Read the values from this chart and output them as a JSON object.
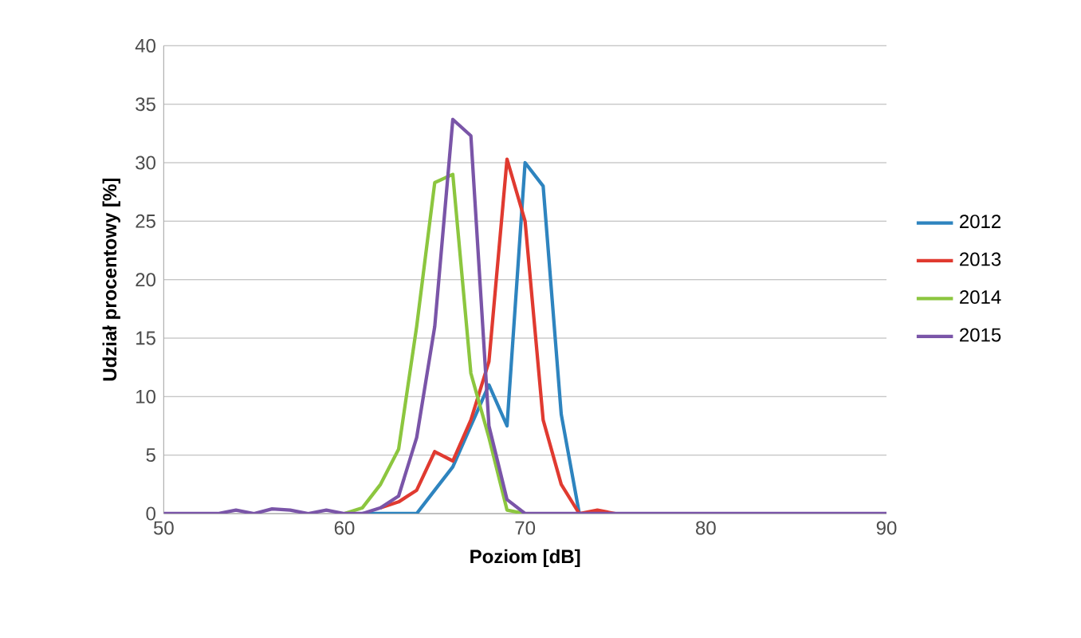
{
  "chart_data": {
    "type": "line",
    "xlabel": "Poziom [dB]",
    "ylabel": "Udział procentowy [%]",
    "x": [
      50,
      51,
      52,
      53,
      54,
      55,
      56,
      57,
      58,
      59,
      60,
      61,
      62,
      63,
      64,
      65,
      66,
      67,
      68,
      69,
      70,
      71,
      72,
      73,
      74,
      75,
      76,
      77,
      78,
      79,
      80,
      81,
      82,
      83,
      84,
      85,
      86,
      87,
      88,
      89,
      90
    ],
    "series": [
      {
        "name": "2012",
        "color": "#2e84bf",
        "values": [
          null,
          null,
          null,
          null,
          null,
          null,
          null,
          null,
          null,
          null,
          null,
          0,
          0,
          0,
          0,
          2,
          4,
          7.5,
          11,
          7.5,
          30,
          28,
          8.5,
          0,
          null,
          null,
          null,
          null,
          null,
          null,
          null,
          null,
          null,
          null,
          null,
          null,
          null,
          null,
          null,
          null,
          null
        ]
      },
      {
        "name": "2013",
        "color": "#e03a30",
        "values": [
          null,
          null,
          null,
          null,
          null,
          null,
          null,
          null,
          null,
          null,
          null,
          null,
          0.5,
          1,
          2,
          5.3,
          4.5,
          8,
          13,
          30.3,
          25,
          8,
          2.5,
          0,
          0.3,
          0,
          null,
          null,
          null,
          null,
          null,
          null,
          null,
          null,
          null,
          null,
          null,
          null,
          null,
          null,
          null
        ]
      },
      {
        "name": "2014",
        "color": "#8cc63f",
        "values": [
          null,
          null,
          null,
          null,
          null,
          null,
          null,
          null,
          null,
          null,
          0,
          0.5,
          2.5,
          5.5,
          16,
          28.3,
          29,
          12,
          6.5,
          0.3,
          0,
          null,
          null,
          null,
          null,
          null,
          null,
          null,
          null,
          null,
          null,
          null,
          null,
          null,
          null,
          null,
          null,
          null,
          null,
          null,
          null
        ]
      },
      {
        "name": "2015",
        "color": "#7a55a8",
        "values": [
          0,
          0,
          0,
          0,
          0.3,
          0,
          0.4,
          0.3,
          0,
          0.3,
          0,
          0,
          0.5,
          1.5,
          6.5,
          16,
          33.7,
          32.3,
          7.5,
          1.2,
          0,
          0,
          0,
          0,
          0,
          0,
          0,
          0,
          0,
          0,
          0,
          0,
          0,
          0,
          0,
          0,
          0,
          0,
          0,
          0,
          0
        ]
      }
    ],
    "xlim": [
      50,
      90
    ],
    "xticks": [
      50,
      60,
      70,
      80,
      90
    ],
    "ylim": [
      0,
      40
    ],
    "yticks": [
      0,
      5,
      10,
      15,
      20,
      25,
      30,
      35,
      40
    ],
    "grid": "y",
    "legend": "right",
    "marker": "none",
    "line_style": "solid"
  }
}
